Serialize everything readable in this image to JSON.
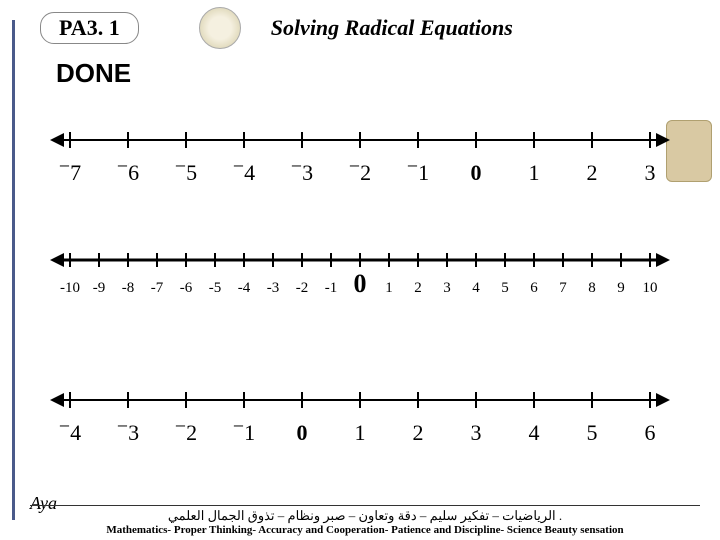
{
  "header": {
    "pa_label": "PA3. 1",
    "title": "Solving Radical Equations"
  },
  "status": "DONE",
  "numberlines": {
    "line1": {
      "min": -7,
      "max": 3,
      "step": 1,
      "tick_height": 16,
      "line_width": 2,
      "font_size": 22,
      "label_y_offset": 40,
      "superscript_minus": true,
      "bold_zero": true
    },
    "line2": {
      "min": -10,
      "max": 10,
      "step": 1,
      "tick_height": 14,
      "line_width": 3,
      "font_size": 15,
      "label_y_offset": 32,
      "superscript_minus": false,
      "bold_zero": true,
      "zero_font_size": 26
    },
    "line3": {
      "min": -4,
      "max": 6,
      "step": 1,
      "tick_height": 16,
      "line_width": 2,
      "font_size": 22,
      "label_y_offset": 40,
      "superscript_minus": true,
      "bold_zero": true
    }
  },
  "colors": {
    "line": "#000000",
    "text": "#000000",
    "border": "#4a5a8a"
  },
  "footer": {
    "arabic": ". الرياضيات – تفكير سليم – دقة وتعاون – صبر ونظام – تذوق الجمال العلمي",
    "english": "Mathematics- Proper Thinking- Accuracy and Cooperation- Patience and Discipline- Science Beauty sensation"
  },
  "signature": "Aya"
}
